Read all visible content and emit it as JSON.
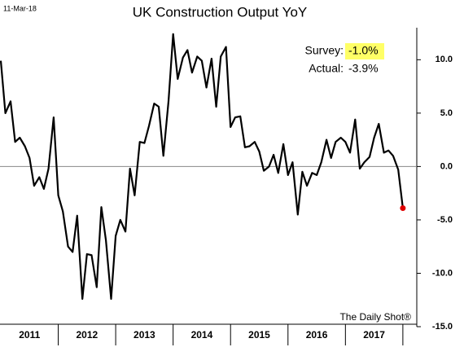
{
  "chart_data": {
    "type": "line",
    "title": "UK Construction Output YoY",
    "date_label": "11-Mar-18",
    "survey_label": "Survey:",
    "survey_value": "-1.0%",
    "actual_label": "Actual:",
    "actual_value": "-3.9%",
    "source": "The Daily Shot®",
    "x": [
      2011.0,
      2011.08,
      2011.17,
      2011.25,
      2011.33,
      2011.42,
      2011.5,
      2011.58,
      2011.67,
      2011.75,
      2011.83,
      2011.92,
      2012.0,
      2012.08,
      2012.17,
      2012.25,
      2012.33,
      2012.42,
      2012.5,
      2012.58,
      2012.67,
      2012.75,
      2012.83,
      2012.92,
      2013.0,
      2013.08,
      2013.17,
      2013.25,
      2013.33,
      2013.42,
      2013.5,
      2013.58,
      2013.67,
      2013.75,
      2013.83,
      2013.92,
      2014.0,
      2014.08,
      2014.17,
      2014.25,
      2014.33,
      2014.42,
      2014.5,
      2014.58,
      2014.67,
      2014.75,
      2014.83,
      2014.92,
      2015.0,
      2015.08,
      2015.17,
      2015.25,
      2015.33,
      2015.42,
      2015.5,
      2015.58,
      2015.67,
      2015.75,
      2015.83,
      2015.92,
      2016.0,
      2016.08,
      2016.17,
      2016.25,
      2016.33,
      2016.42,
      2016.5,
      2016.58,
      2016.67,
      2016.75,
      2016.83,
      2016.92,
      2017.0,
      2017.08,
      2017.17,
      2017.25,
      2017.33,
      2017.42,
      2017.5,
      2017.58,
      2017.67,
      2017.75,
      2017.83,
      2017.92,
      2018.0
    ],
    "series": [
      {
        "color": "#000000",
        "values": [
          9.9,
          5.0,
          6.1,
          2.3,
          2.7,
          1.9,
          0.8,
          -1.8,
          -1.0,
          -2.1,
          -0.2,
          4.6,
          -2.7,
          -4.2,
          -7.5,
          -8.0,
          -4.6,
          -12.4,
          -8.2,
          -8.3,
          -11.3,
          -3.8,
          -6.9,
          -12.4,
          -6.5,
          -5.0,
          -6.1,
          -0.2,
          -2.7,
          2.3,
          2.2,
          3.8,
          5.9,
          5.6,
          1.0,
          6.1,
          12.4,
          8.2,
          10.2,
          10.9,
          8.8,
          10.3,
          9.9,
          7.4,
          10.1,
          5.6,
          10.3,
          11.2,
          3.7,
          4.6,
          4.7,
          1.8,
          1.9,
          2.3,
          1.4,
          -0.4,
          0.0,
          1.1,
          -0.6,
          2.1,
          -0.8,
          0.4,
          -4.5,
          -0.5,
          -1.8,
          -0.6,
          -0.8,
          0.4,
          2.5,
          0.8,
          2.3,
          2.7,
          2.3,
          1.3,
          4.4,
          -0.2,
          0.4,
          0.9,
          2.7,
          4.0,
          1.3,
          1.5,
          1.0,
          -0.3,
          -3.9
        ]
      }
    ],
    "last_point_color": "#e00000",
    "reference_line": 0,
    "xlim": [
      2011,
      2018.2
    ],
    "xticks": [
      {
        "value": 2011.5,
        "label": "2011"
      },
      {
        "value": 2012.5,
        "label": "2012"
      },
      {
        "value": 2013.5,
        "label": "2013"
      },
      {
        "value": 2014.5,
        "label": "2014"
      },
      {
        "value": 2015.5,
        "label": "2015"
      },
      {
        "value": 2016.5,
        "label": "2016"
      },
      {
        "value": 2017.5,
        "label": "2017"
      }
    ],
    "ylim": [
      -15,
      13
    ],
    "yticks": [
      {
        "value": 10,
        "label": "10.0"
      },
      {
        "value": 5,
        "label": "5.0"
      },
      {
        "value": 0,
        "label": "0.0"
      },
      {
        "value": -5,
        "label": "-5.0"
      },
      {
        "value": -10,
        "label": "-10.0"
      },
      {
        "value": -15,
        "label": "-15.0"
      }
    ]
  }
}
